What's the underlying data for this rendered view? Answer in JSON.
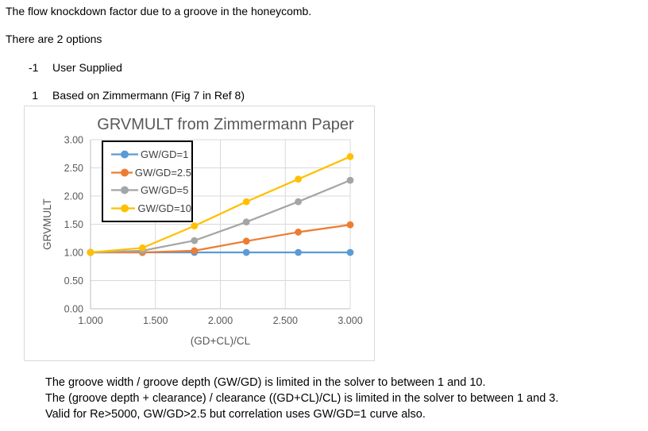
{
  "page": {
    "intro_line": "The flow knockdown factor due to a groove in the honeycomb.",
    "options_heading": "There are 2 options",
    "options": [
      {
        "value": "-1",
        "label": "User Supplied"
      },
      {
        "value": "1",
        "label": "Based on Zimmermann (Fig 7 in Ref 8)"
      }
    ],
    "notes": [
      "The groove width / groove depth (GW/GD) is limited in the solver to between 1 and 10.",
      "The (groove depth + clearance) / clearance ((GD+CL)/CL) is limited in the solver to between 1 and 3.",
      "Valid for Re>5000, GW/GD>2.5 but correlation uses GW/GD=1 curve also."
    ]
  },
  "chart_data": {
    "type": "line",
    "title": "GRVMULT from Zimmermann Paper",
    "xlabel": "(GD+CL)/CL",
    "ylabel": "GRVMULT",
    "xlim": [
      1.0,
      3.0
    ],
    "ylim": [
      0.0,
      3.0
    ],
    "grid": true,
    "legend_position": "inside-top-left",
    "x_tick_labels": [
      "1.000",
      "1.500",
      "2.000",
      "2.500",
      "3.000"
    ],
    "y_tick_labels": [
      "0.00",
      "0.50",
      "1.00",
      "1.50",
      "2.00",
      "2.50",
      "3.00"
    ],
    "x": [
      1.0,
      1.4,
      1.8,
      2.2,
      2.6,
      3.0
    ],
    "series": [
      {
        "name": "GW/GD=1",
        "color": "#5B9BD5",
        "values": [
          1.0,
          1.0,
          1.0,
          1.0,
          1.0,
          1.0
        ]
      },
      {
        "name": "GW/GD=2.5",
        "color": "#ED7D31",
        "values": [
          1.0,
          1.0,
          1.03,
          1.2,
          1.36,
          1.49
        ]
      },
      {
        "name": "GW/GD=5",
        "color": "#A5A5A5",
        "values": [
          1.0,
          1.03,
          1.21,
          1.54,
          1.9,
          2.28
        ]
      },
      {
        "name": "GW/GD=10",
        "color": "#FFC000",
        "values": [
          1.0,
          1.08,
          1.47,
          1.9,
          2.3,
          2.7
        ]
      }
    ],
    "colors": {
      "text": "#595959",
      "gridline": "#D9D9D9",
      "axis": "#BFBFBF",
      "legend_border": "#000000"
    }
  }
}
